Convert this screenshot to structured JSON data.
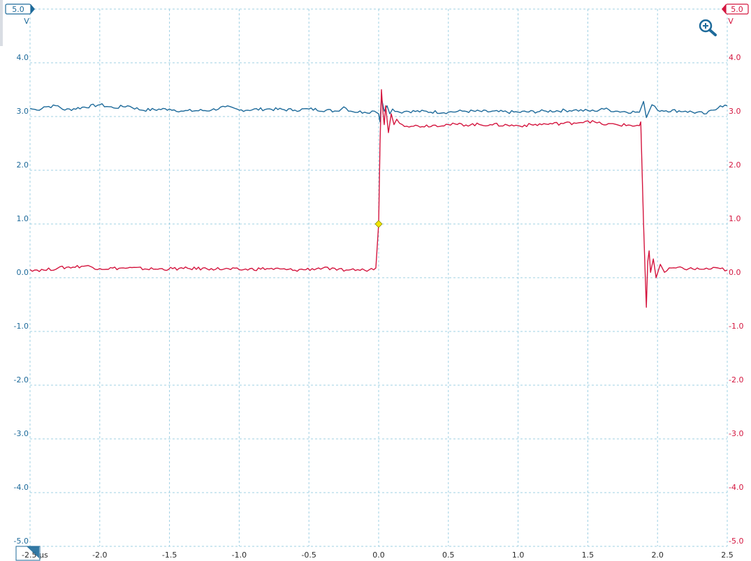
{
  "colors": {
    "channel_a": "#1d6a9a",
    "channel_b": "#d4163f",
    "grid": "#9fd0e3",
    "trigger": "#f2e600",
    "icon": "#1d6a9a"
  },
  "channels": {
    "a": {
      "range_label": "5.0",
      "unit_label": "V"
    },
    "b": {
      "range_label": "5.0",
      "unit_label": "V"
    }
  },
  "time_axis": {
    "first_label": "-2.5 µs"
  },
  "icons": {
    "zoom": "zoom-in-icon"
  },
  "chart_data": {
    "type": "line",
    "title": "",
    "xlabel": "µs",
    "ylabel": "V",
    "xlim": [
      -2.5,
      2.5
    ],
    "ylim": [
      -5.0,
      5.0
    ],
    "grid": true,
    "x_ticks": [
      "-2.5 µs",
      "-2.0",
      "-1.5",
      "-1.0",
      "-0.5",
      "0.0",
      "0.5",
      "1.0",
      "1.5",
      "2.0",
      "2.5"
    ],
    "y_ticks_left": [
      "5.0",
      "4.0",
      "3.0",
      "2.0",
      "1.0",
      "0.0",
      "-1.0",
      "-2.0",
      "-3.0",
      "-4.0",
      "-5.0"
    ],
    "y_ticks_right": [
      "5.0",
      "4.0",
      "3.0",
      "2.0",
      "1.0",
      "0.0",
      "-1.0",
      "-2.0",
      "-3.0",
      "-4.0",
      "-5.0"
    ],
    "trigger": {
      "x": 0.0,
      "y": 1.0
    },
    "series": [
      {
        "channel": "A",
        "color": "#1d6a9a",
        "points": [
          [
            -2.5,
            3.15
          ],
          [
            -2.45,
            3.12
          ],
          [
            -2.4,
            3.18
          ],
          [
            -2.3,
            3.2
          ],
          [
            -2.25,
            3.12
          ],
          [
            -2.0,
            3.22
          ],
          [
            -1.9,
            3.16
          ],
          [
            -1.8,
            3.2
          ],
          [
            -1.7,
            3.12
          ],
          [
            -1.5,
            3.14
          ],
          [
            -1.4,
            3.1
          ],
          [
            -1.2,
            3.12
          ],
          [
            -1.1,
            3.18
          ],
          [
            -1.0,
            3.12
          ],
          [
            -0.8,
            3.14
          ],
          [
            -0.6,
            3.12
          ],
          [
            -0.5,
            3.14
          ],
          [
            -0.3,
            3.1
          ],
          [
            -0.25,
            3.18
          ],
          [
            -0.2,
            3.1
          ],
          [
            -0.1,
            3.08
          ],
          [
            -0.03,
            3.1
          ],
          [
            0.0,
            3.05
          ],
          [
            0.01,
            2.9
          ],
          [
            0.02,
            3.35
          ],
          [
            0.04,
            3.1
          ],
          [
            0.06,
            3.2
          ],
          [
            0.08,
            3.05
          ],
          [
            0.1,
            3.14
          ],
          [
            0.15,
            3.08
          ],
          [
            0.2,
            3.1
          ],
          [
            0.5,
            3.08
          ],
          [
            0.6,
            3.1
          ],
          [
            1.0,
            3.08
          ],
          [
            1.2,
            3.1
          ],
          [
            1.4,
            3.12
          ],
          [
            1.55,
            3.1
          ],
          [
            1.6,
            3.15
          ],
          [
            1.7,
            3.1
          ],
          [
            1.87,
            3.08
          ],
          [
            1.9,
            3.28
          ],
          [
            1.92,
            2.98
          ],
          [
            1.94,
            3.1
          ],
          [
            1.96,
            3.22
          ],
          [
            2.0,
            3.12
          ],
          [
            2.2,
            3.1
          ],
          [
            2.35,
            3.05
          ],
          [
            2.45,
            3.2
          ],
          [
            2.5,
            3.2
          ]
        ]
      },
      {
        "channel": "B",
        "color": "#d4163f",
        "points": [
          [
            -2.5,
            0.15
          ],
          [
            -2.4,
            0.14
          ],
          [
            -2.3,
            0.18
          ],
          [
            -2.1,
            0.22
          ],
          [
            -2.0,
            0.17
          ],
          [
            -1.8,
            0.18
          ],
          [
            -1.6,
            0.16
          ],
          [
            -1.4,
            0.17
          ],
          [
            -1.2,
            0.17
          ],
          [
            -1.0,
            0.15
          ],
          [
            -0.8,
            0.17
          ],
          [
            -0.6,
            0.14
          ],
          [
            -0.4,
            0.18
          ],
          [
            -0.3,
            0.14
          ],
          [
            -0.2,
            0.15
          ],
          [
            -0.1,
            0.14
          ],
          [
            -0.02,
            0.18
          ],
          [
            0.0,
            1.0
          ],
          [
            0.01,
            2.5
          ],
          [
            0.02,
            3.5
          ],
          [
            0.03,
            3.1
          ],
          [
            0.04,
            2.85
          ],
          [
            0.05,
            3.2
          ],
          [
            0.07,
            2.7
          ],
          [
            0.09,
            3.05
          ],
          [
            0.11,
            2.85
          ],
          [
            0.13,
            2.95
          ],
          [
            0.17,
            2.85
          ],
          [
            0.25,
            2.82
          ],
          [
            0.5,
            2.85
          ],
          [
            0.8,
            2.85
          ],
          [
            1.0,
            2.83
          ],
          [
            1.2,
            2.86
          ],
          [
            1.4,
            2.88
          ],
          [
            1.5,
            2.92
          ],
          [
            1.6,
            2.86
          ],
          [
            1.87,
            2.83
          ],
          [
            1.88,
            2.9
          ],
          [
            1.9,
            1.0
          ],
          [
            1.91,
            0.2
          ],
          [
            1.92,
            -0.55
          ],
          [
            1.93,
            0.3
          ],
          [
            1.94,
            0.5
          ],
          [
            1.95,
            0.1
          ],
          [
            1.97,
            0.35
          ],
          [
            1.99,
            0.0
          ],
          [
            2.02,
            0.25
          ],
          [
            2.05,
            0.1
          ],
          [
            2.1,
            0.18
          ],
          [
            2.3,
            0.16
          ],
          [
            2.45,
            0.17
          ],
          [
            2.5,
            0.14
          ]
        ]
      }
    ]
  }
}
